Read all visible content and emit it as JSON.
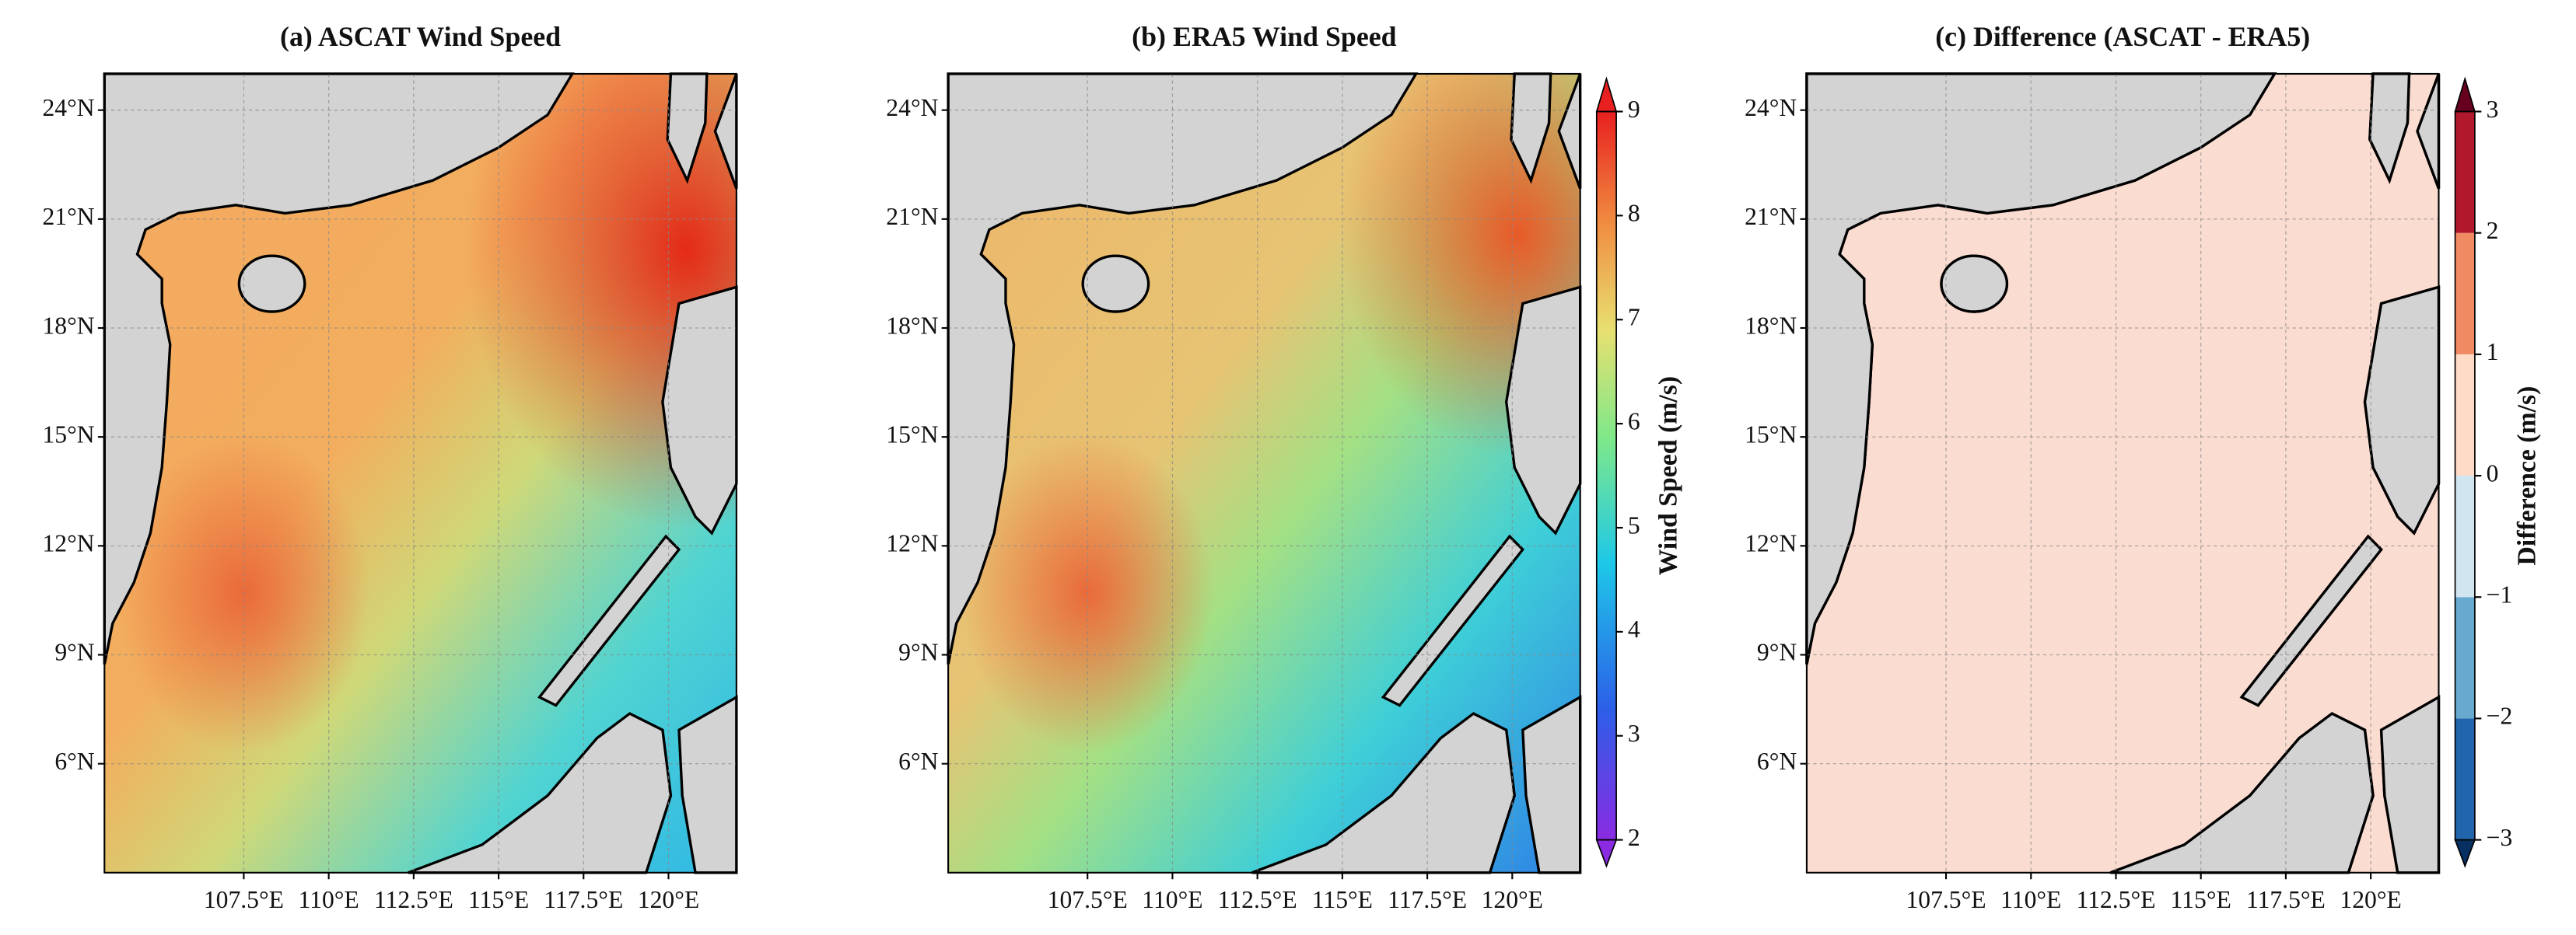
{
  "panels": [
    {
      "title": "(a) ASCAT Wind Speed",
      "xlim": [
        103.4,
        122
      ],
      "ylim": [
        3,
        25
      ],
      "xticks": [
        {
          "value": 107.5,
          "label": "107.5°E"
        },
        {
          "value": 110,
          "label": "110°E"
        },
        {
          "value": 112.5,
          "label": "112.5°E"
        },
        {
          "value": 115,
          "label": "115°E"
        },
        {
          "value": 117.5,
          "label": "117.5°E"
        },
        {
          "value": 120,
          "label": "120°E"
        }
      ],
      "yticks": [
        {
          "value": 6,
          "label": "6°N"
        },
        {
          "value": 9,
          "label": "9°N"
        },
        {
          "value": 12,
          "label": "12°N"
        },
        {
          "value": 15,
          "label": "15°N"
        },
        {
          "value": 18,
          "label": "18°N"
        },
        {
          "value": 21,
          "label": "21°N"
        },
        {
          "value": 24,
          "label": "24°N"
        }
      ]
    },
    {
      "title": "(b) ERA5 Wind Speed",
      "xlim": [
        103.4,
        122
      ],
      "ylim": [
        3,
        25
      ],
      "xticks": [
        {
          "value": 107.5,
          "label": "107.5°E"
        },
        {
          "value": 110,
          "label": "110°E"
        },
        {
          "value": 112.5,
          "label": "112.5°E"
        },
        {
          "value": 115,
          "label": "115°E"
        },
        {
          "value": 117.5,
          "label": "117.5°E"
        },
        {
          "value": 120,
          "label": "120°E"
        }
      ],
      "yticks": [
        {
          "value": 6,
          "label": "6°N"
        },
        {
          "value": 9,
          "label": "9°N"
        },
        {
          "value": 12,
          "label": "12°N"
        },
        {
          "value": 15,
          "label": "15°N"
        },
        {
          "value": 18,
          "label": "18°N"
        },
        {
          "value": 21,
          "label": "21°N"
        },
        {
          "value": 24,
          "label": "24°N"
        }
      ]
    },
    {
      "title": "(c) Difference (ASCAT - ERA5)",
      "xlim": [
        103.4,
        122
      ],
      "ylim": [
        3,
        25
      ],
      "xticks": [
        {
          "value": 107.5,
          "label": "107.5°E"
        },
        {
          "value": 110,
          "label": "110°E"
        },
        {
          "value": 112.5,
          "label": "112.5°E"
        },
        {
          "value": 115,
          "label": "115°E"
        },
        {
          "value": 117.5,
          "label": "117.5°E"
        },
        {
          "value": 120,
          "label": "120°E"
        }
      ],
      "yticks": [
        {
          "value": 6,
          "label": "6°N"
        },
        {
          "value": 9,
          "label": "9°N"
        },
        {
          "value": 12,
          "label": "12°N"
        },
        {
          "value": 15,
          "label": "15°N"
        },
        {
          "value": 18,
          "label": "18°N"
        },
        {
          "value": 21,
          "label": "21°N"
        },
        {
          "value": 24,
          "label": "24°N"
        }
      ]
    }
  ],
  "colorbars": [
    {
      "label": "Wind Speed (m/s)",
      "lim": [
        2,
        9
      ],
      "ticks": [
        2,
        3,
        4,
        5,
        6,
        7,
        8,
        9
      ]
    },
    {
      "label": "Difference (m/s)",
      "lim": [
        -3,
        3
      ],
      "ticks": [
        {
          "value": -3,
          "label": "−3"
        },
        {
          "value": -2,
          "label": "−2"
        },
        {
          "value": -1,
          "label": "−1"
        },
        0,
        1,
        2,
        3
      ]
    }
  ]
}
